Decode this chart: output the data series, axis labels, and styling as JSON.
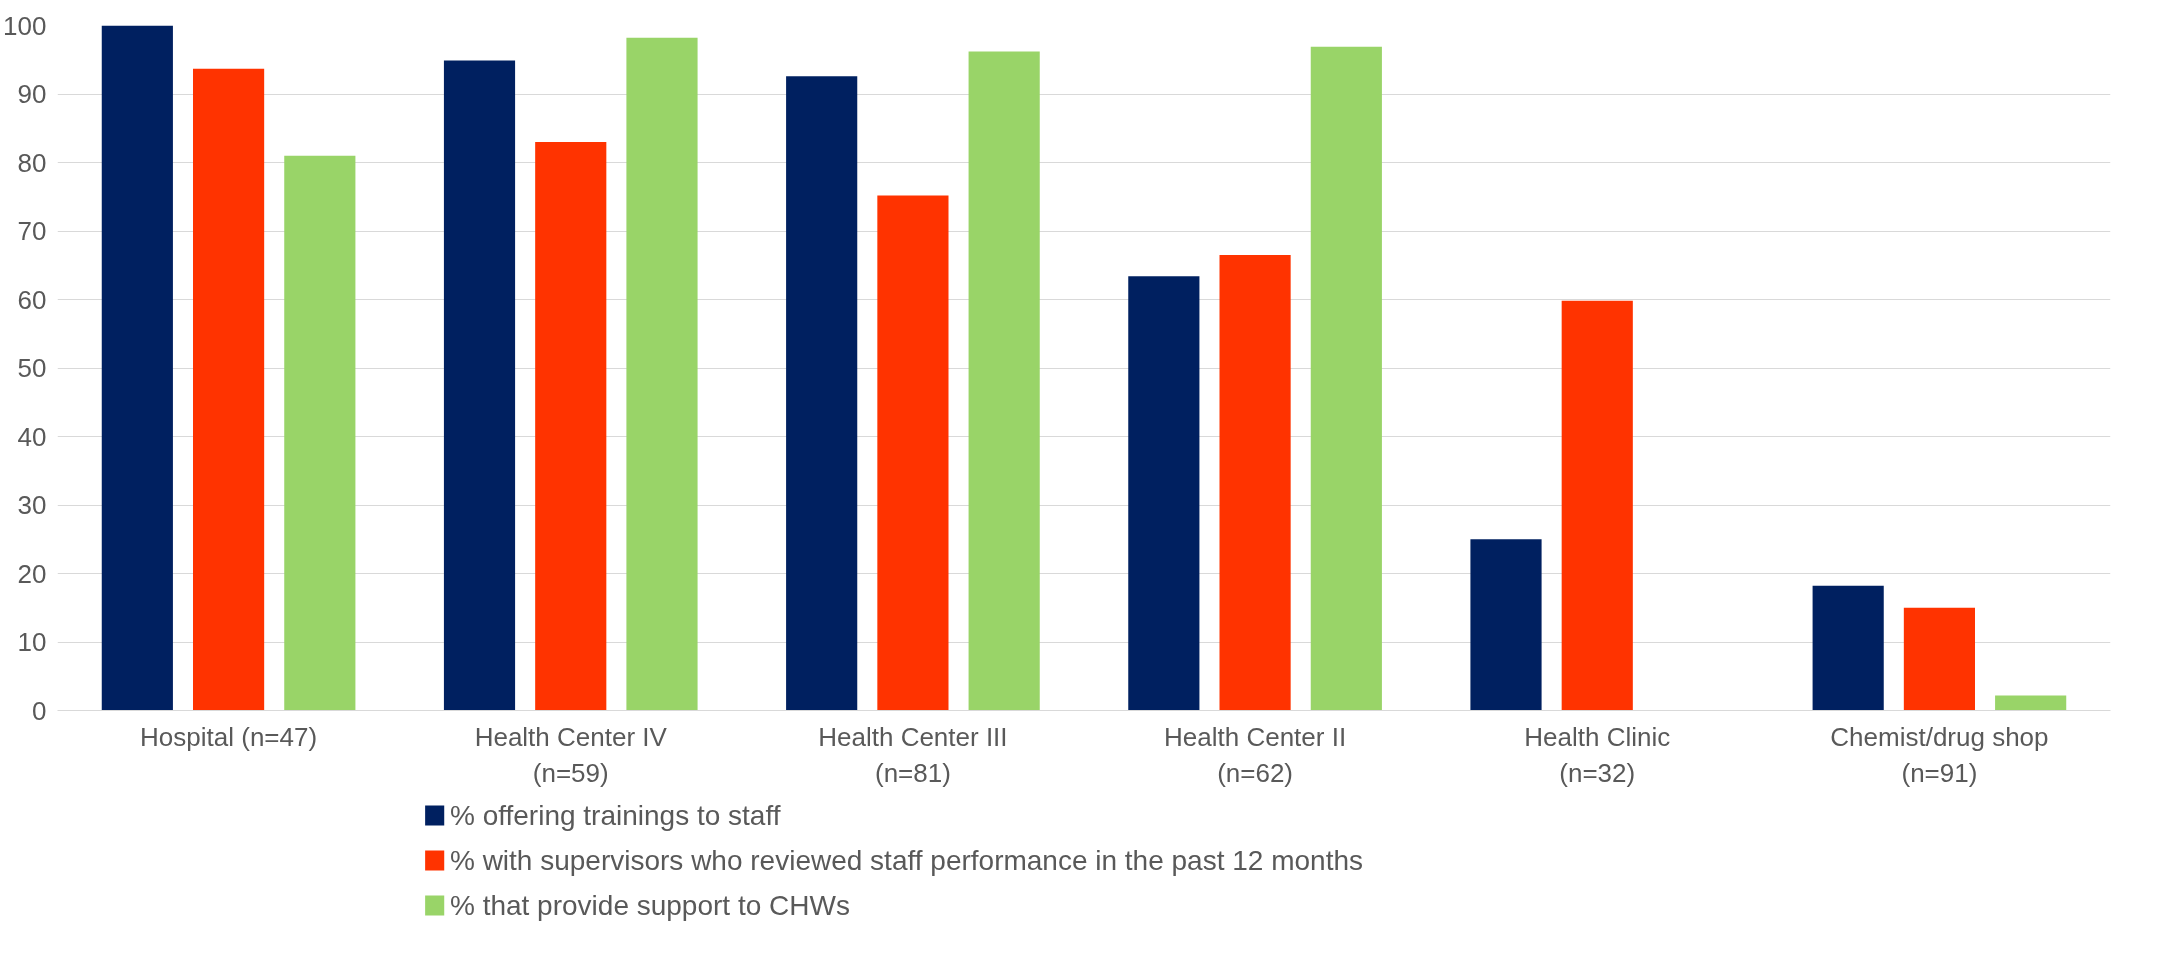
{
  "chart_data": {
    "type": "bar",
    "categories": [
      "Hospital (n=47)",
      "Health Center IV (n=59)",
      "Health Center III (n=81)",
      "Health Center II (n=62)",
      "Health Clinic (n=32)",
      "Chemist/drug shop (n=91)"
    ],
    "series": [
      {
        "name": "% offering trainings to staff",
        "color": "#002060",
        "values": [
          100,
          94.9,
          92.6,
          63.4,
          25.0,
          18.2
        ]
      },
      {
        "name": "% with supervisors who reviewed staff performance in the past 12 months",
        "color": "#ff3300",
        "values": [
          93.7,
          83.0,
          75.2,
          66.5,
          59.8,
          15.0
        ]
      },
      {
        "name": "% that provide support to CHWs",
        "color": "#99d468",
        "values": [
          81.0,
          98.2,
          96.2,
          96.9,
          null,
          2.2
        ]
      }
    ],
    "ylim": [
      0,
      100
    ],
    "yticks": [
      0,
      10,
      20,
      30,
      40,
      50,
      60,
      70,
      80,
      90,
      100
    ],
    "grid": "y",
    "legend": "bottom"
  }
}
